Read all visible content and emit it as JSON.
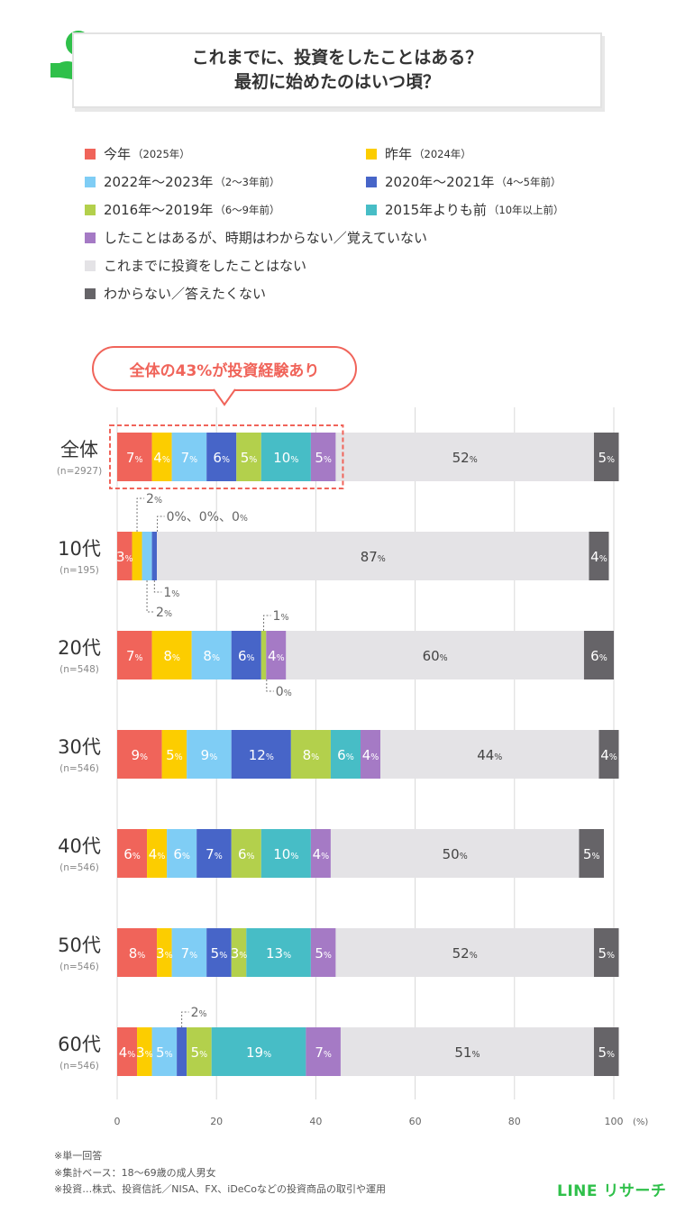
{
  "title": {
    "line1": "これまでに、投資をしたことはある？",
    "line2": "最初に始めたのはいつ頃？"
  },
  "icon": {
    "name": "yen-hand-icon",
    "glyph": "¥",
    "color": "#2fc04a"
  },
  "callout": "全体の43%が投資経験あり",
  "legend": [
    {
      "label": "今年",
      "sub": "（2025年）",
      "color": "#f0645a"
    },
    {
      "label": "昨年",
      "sub": "（2024年）",
      "color": "#fccd00"
    },
    {
      "label": "2022年～2023年",
      "sub": "（2～3年前）",
      "color": "#7fcdf5"
    },
    {
      "label": "2020年～2021年",
      "sub": "（4～5年前）",
      "color": "#4765c8"
    },
    {
      "label": "2016年～2019年",
      "sub": "（6～9年前）",
      "color": "#b3d04c"
    },
    {
      "label": "2015年よりも前",
      "sub": "（10年以上前）",
      "color": "#47bdc6"
    },
    {
      "label": "したことはあるが、時期はわからない／覚えていない",
      "sub": "",
      "color": "#a57ac5"
    },
    {
      "label": "これまでに投資をしたことはない",
      "sub": "",
      "color": "#e4e3e6"
    },
    {
      "label": "わからない／答えたくない",
      "sub": "",
      "color": "#666468"
    }
  ],
  "chart_data": {
    "type": "bar",
    "orientation": "horizontal-stacked-100",
    "unit_label": "(%)",
    "xlim": [
      0,
      100
    ],
    "xticks": [
      "0",
      "20",
      "40",
      "60",
      "80",
      "100"
    ],
    "series_colors": [
      "#f0645a",
      "#fccd00",
      "#7fcdf5",
      "#4765c8",
      "#b3d04c",
      "#47bdc6",
      "#a57ac5",
      "#e4e3e6",
      "#666468"
    ],
    "rows": [
      {
        "label": "全体",
        "n": "(n=2927)",
        "values": [
          7,
          4,
          7,
          6,
          5,
          10,
          5,
          52,
          5
        ]
      },
      {
        "label": "10代",
        "n": "(n=195)",
        "values": [
          3,
          2,
          2,
          1,
          0,
          0,
          0,
          87,
          4
        ]
      },
      {
        "label": "20代",
        "n": "(n=548)",
        "values": [
          7,
          8,
          8,
          6,
          1,
          0,
          4,
          60,
          6
        ]
      },
      {
        "label": "30代",
        "n": "(n=546)",
        "values": [
          9,
          5,
          9,
          12,
          8,
          6,
          4,
          44,
          4
        ]
      },
      {
        "label": "40代",
        "n": "(n=546)",
        "values": [
          6,
          4,
          6,
          7,
          6,
          10,
          4,
          50,
          5
        ]
      },
      {
        "label": "50代",
        "n": "(n=546)",
        "values": [
          8,
          3,
          7,
          5,
          3,
          13,
          5,
          52,
          5
        ]
      },
      {
        "label": "60代",
        "n": "(n=546)",
        "values": [
          4,
          3,
          5,
          2,
          5,
          19,
          7,
          51,
          5
        ]
      }
    ],
    "outside_labels": [
      {
        "row": 1,
        "seg": 1,
        "text": "2",
        "side": "above"
      },
      {
        "row": 1,
        "seg": 4,
        "text": "0%、0%、0",
        "side": "above"
      },
      {
        "row": 1,
        "seg": 3,
        "text": "1",
        "side": "below"
      },
      {
        "row": 1,
        "seg": 2,
        "text": "2",
        "side": "below"
      },
      {
        "row": 2,
        "seg": 4,
        "text": "1",
        "side": "above"
      },
      {
        "row": 2,
        "seg": 5,
        "text": "0",
        "side": "below"
      },
      {
        "row": 6,
        "seg": 3,
        "text": "2",
        "side": "above"
      }
    ]
  },
  "notes": [
    "※単一回答",
    "※集計ベース：18～69歳の成人男女",
    "※投資…株式、投資信託／NISA、FX、iDeCoなどの投資商品の取引や運用"
  ],
  "brand": "LINE リサーチ"
}
